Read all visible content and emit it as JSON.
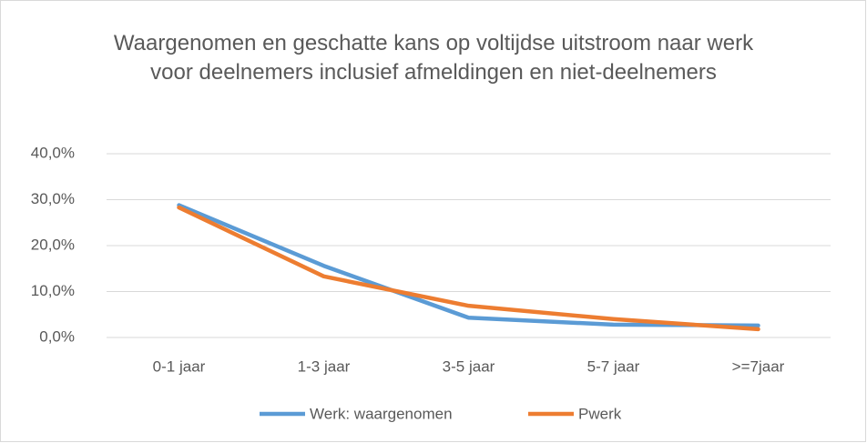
{
  "chart_data": {
    "type": "line",
    "title": "Waargenomen en geschatte kans op voltijdse uitstroom naar werk voor deelnemers inclusief afmeldingen en niet-deelnemers",
    "categories": [
      "0-1 jaar",
      "1-3 jaar",
      "3-5 jaar",
      "5-7 jaar",
      ">=7jaar"
    ],
    "series": [
      {
        "name": "Werk: waargenomen",
        "color": "#5b9bd5",
        "values": [
          28.8,
          15.6,
          4.3,
          2.8,
          2.6
        ]
      },
      {
        "name": "Pwerk",
        "color": "#ed7d31",
        "values": [
          28.3,
          13.3,
          6.9,
          4.0,
          1.8
        ]
      }
    ],
    "ylim": [
      0,
      40
    ],
    "yticks": [
      {
        "value": 0,
        "label": "0,0%"
      },
      {
        "value": 10,
        "label": "10,0%"
      },
      {
        "value": 20,
        "label": "20,0%"
      },
      {
        "value": 30,
        "label": "30,0%"
      },
      {
        "value": 40,
        "label": "40,0%"
      }
    ],
    "grid": true,
    "legend": "bottom"
  }
}
